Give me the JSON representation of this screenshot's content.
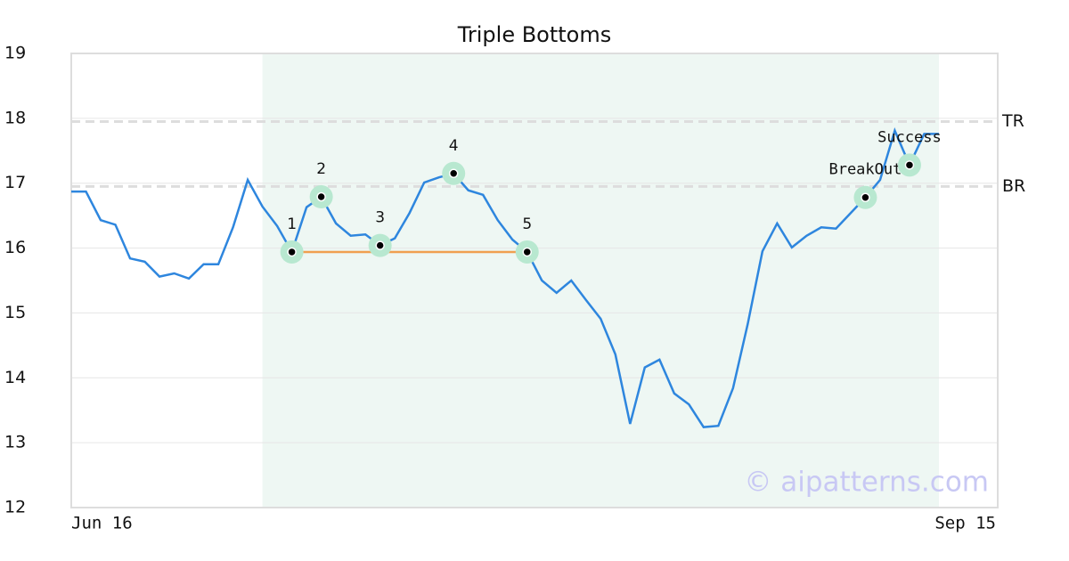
{
  "chart_data": {
    "type": "line",
    "title": "Triple Bottoms",
    "x": [
      0,
      1,
      2,
      3,
      4,
      5,
      6,
      7,
      8,
      9,
      10,
      11,
      12,
      13,
      14,
      15,
      16,
      17,
      18,
      19,
      20,
      21,
      22,
      23,
      24,
      25,
      26,
      27,
      28,
      29,
      30,
      31,
      32,
      33,
      34,
      35,
      36,
      37,
      38,
      39,
      40,
      41,
      42,
      43,
      44,
      45,
      46,
      47,
      48,
      49,
      50,
      51,
      52,
      53,
      54,
      55,
      56,
      57,
      58,
      59
    ],
    "series": [
      {
        "color": "#2e86de",
        "values": [
          16.87,
          16.87,
          16.43,
          16.36,
          15.84,
          15.79,
          15.56,
          15.61,
          15.53,
          15.75,
          15.75,
          16.32,
          17.05,
          16.64,
          16.34,
          15.94,
          16.63,
          16.79,
          16.38,
          16.19,
          16.21,
          16.04,
          16.15,
          16.54,
          17.01,
          17.09,
          17.15,
          16.89,
          16.82,
          16.43,
          16.13,
          15.94,
          15.5,
          15.31,
          15.5,
          15.2,
          14.91,
          14.36,
          13.29,
          14.16,
          14.28,
          13.76,
          13.59,
          13.24,
          13.26,
          13.84,
          14.83,
          15.95,
          16.38,
          16.01,
          16.19,
          16.32,
          16.3,
          16.54,
          16.78,
          17.05,
          17.81,
          17.28,
          17.76,
          17.76
        ]
      }
    ],
    "xlim": [
      0,
      63
    ],
    "xticks": [
      {
        "value": 0,
        "label": "Jun 16"
      },
      {
        "value": 63,
        "label": "Sep 15"
      }
    ],
    "ylim": [
      12,
      19
    ],
    "yticks": [
      12,
      13,
      14,
      15,
      16,
      17,
      18,
      19
    ],
    "grid": true,
    "highlight_range": [
      13,
      59
    ],
    "points": [
      {
        "label": "1",
        "index": 15
      },
      {
        "label": "2",
        "index": 17
      },
      {
        "label": "3",
        "index": 21
      },
      {
        "label": "4",
        "index": 26
      },
      {
        "label": "5",
        "index": 31
      },
      {
        "label": "BreakOut",
        "index": 54
      },
      {
        "label": "Success",
        "index": 57
      }
    ],
    "support": {
      "value": 15.94,
      "from": 15,
      "to": 31,
      "color": "#f0a050"
    },
    "levels": [
      {
        "label": "TR",
        "value": 17.95
      },
      {
        "label": "BR",
        "value": 16.95
      }
    ],
    "watermark": "© aipatterns.com"
  }
}
